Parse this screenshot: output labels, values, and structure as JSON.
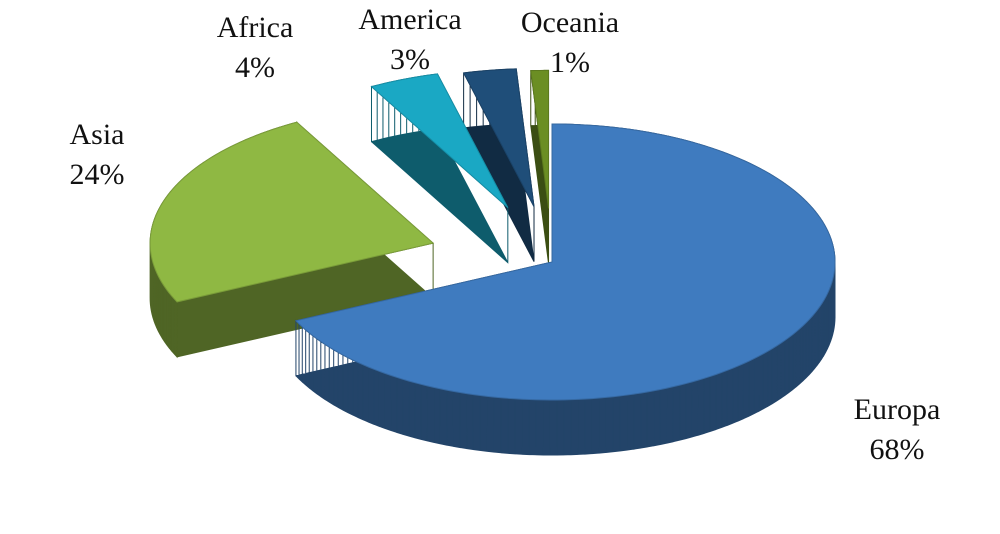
{
  "chart_data": {
    "type": "pie3d",
    "categories": [
      "Europa",
      "Asia",
      "Africa",
      "America",
      "Oceania"
    ],
    "values": [
      68,
      24,
      4,
      3,
      1
    ],
    "value_labels": [
      "68%",
      "24%",
      "4%",
      "3%",
      "1%"
    ],
    "colors": [
      "#3f7bbf",
      "#8fb843",
      "#1aa8c4",
      "#1f4e79",
      "#6b8e23"
    ]
  }
}
